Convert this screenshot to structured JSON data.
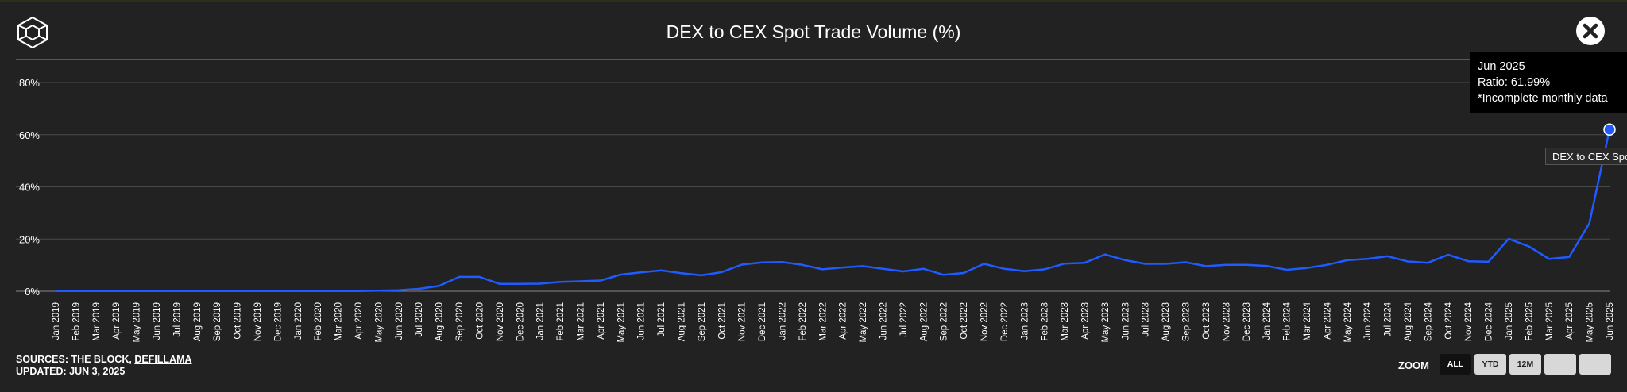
{
  "header": {
    "title": "DEX to CEX Spot Trade Volume (%)"
  },
  "colors": {
    "background": "#222222",
    "accent_line": "#9b1fd8",
    "series_line": "#1f5bff",
    "grid": "#4a4a4a"
  },
  "tooltip": {
    "line1": "Jun 2025",
    "line2": "Ratio: 61.99%",
    "line3": "*Incomplete monthly data"
  },
  "series_label": "DEX to CEX Spot Trade Volume",
  "footer": {
    "sources_prefix": "SOURCES: THE BLOCK, ",
    "sources_link": "DEFILLAMA",
    "updated": "UPDATED: JUN 3, 2025"
  },
  "zoom": {
    "label": "ZOOM",
    "buttons": [
      "ALL",
      "YTD",
      "12M",
      "",
      ""
    ]
  },
  "chart_data": {
    "type": "line",
    "title": "DEX to CEX Spot Trade Volume (%)",
    "ylim": [
      0,
      80
    ],
    "yticks": [
      "0%",
      "20%",
      "40%",
      "60%",
      "80%"
    ],
    "grid": true,
    "categories": [
      "Jan 2019",
      "Feb 2019",
      "Mar 2019",
      "Apr 2019",
      "May 2019",
      "Jun 2019",
      "Jul 2019",
      "Aug 2019",
      "Sep 2019",
      "Oct 2019",
      "Nov 2019",
      "Dec 2019",
      "Jan 2020",
      "Feb 2020",
      "Mar 2020",
      "Apr 2020",
      "May 2020",
      "Jun 2020",
      "Jul 2020",
      "Aug 2020",
      "Sep 2020",
      "Oct 2020",
      "Nov 2020",
      "Dec 2020",
      "Jan 2021",
      "Feb 2021",
      "Mar 2021",
      "Apr 2021",
      "May 2021",
      "Jun 2021",
      "Jul 2021",
      "Aug 2021",
      "Sep 2021",
      "Oct 2021",
      "Nov 2021",
      "Dec 2021",
      "Jan 2022",
      "Feb 2022",
      "Mar 2022",
      "Apr 2022",
      "May 2022",
      "Jun 2022",
      "Jul 2022",
      "Aug 2022",
      "Sep 2022",
      "Oct 2022",
      "Nov 2022",
      "Dec 2022",
      "Jan 2023",
      "Feb 2023",
      "Mar 2023",
      "Apr 2023",
      "May 2023",
      "Jun 2023",
      "Jul 2023",
      "Aug 2023",
      "Sep 2023",
      "Oct 2023",
      "Nov 2023",
      "Dec 2023",
      "Jan 2024",
      "Feb 2024",
      "Mar 2024",
      "Apr 2024",
      "May 2024",
      "Jun 2024",
      "Jul 2024",
      "Aug 2024",
      "Sep 2024",
      "Oct 2024",
      "Nov 2024",
      "Dec 2024",
      "Jan 2025",
      "Feb 2025",
      "Mar 2025",
      "Apr 2025",
      "May 2025",
      "Jun 2025"
    ],
    "series": [
      {
        "name": "DEX to CEX Spot Trade Volume",
        "values": [
          0.1,
          0.1,
          0.1,
          0.1,
          0.1,
          0.1,
          0.1,
          0.1,
          0.1,
          0.1,
          0.1,
          0.1,
          0.1,
          0.1,
          0.1,
          0.1,
          0.2,
          0.4,
          0.9,
          2.0,
          5.5,
          5.5,
          2.8,
          2.8,
          2.9,
          3.6,
          3.8,
          4.1,
          6.4,
          7.2,
          8.0,
          6.9,
          6.1,
          7.3,
          10.2,
          11.0,
          11.2,
          10.1,
          8.4,
          9.1,
          9.6,
          8.6,
          7.6,
          8.6,
          6.3,
          7.0,
          10.5,
          8.6,
          7.7,
          8.4,
          10.6,
          10.9,
          14.1,
          11.9,
          10.5,
          10.5,
          11.1,
          9.6,
          10.1,
          10.1,
          9.7,
          8.2,
          8.9,
          10.1,
          11.9,
          12.4,
          13.4,
          11.4,
          10.9,
          14.0,
          11.5,
          11.3,
          20.1,
          17.2,
          12.4,
          13.1,
          26.0,
          61.99
        ]
      }
    ]
  }
}
